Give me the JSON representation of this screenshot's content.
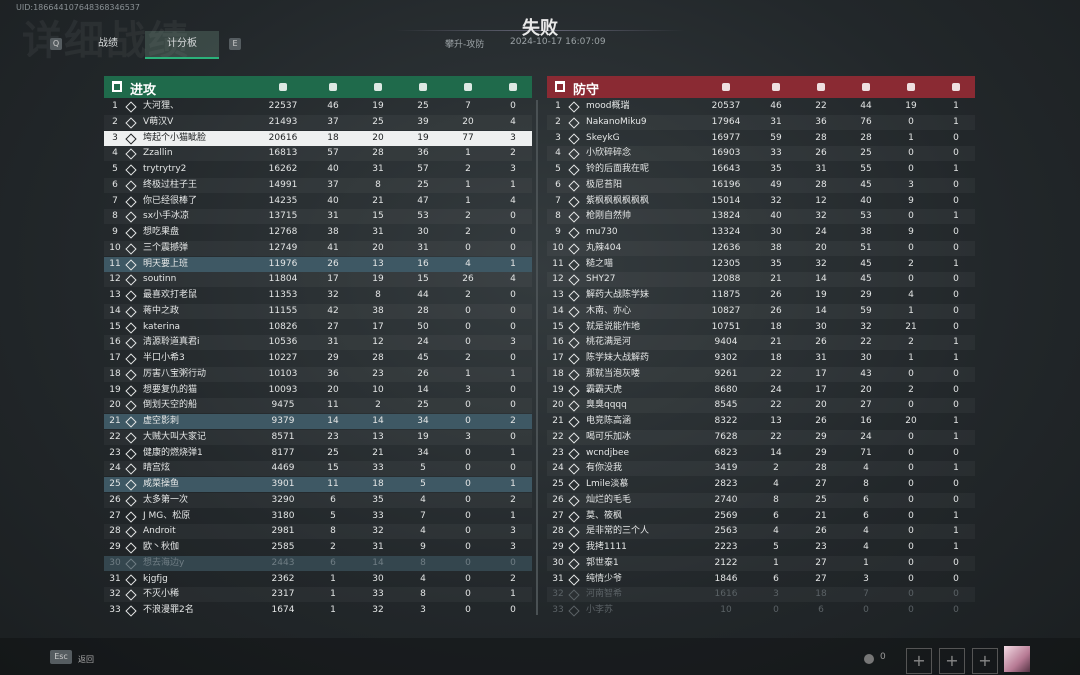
{
  "header": {
    "uid": "UID:186644107648368346537",
    "background_title": "详细战绩",
    "tab_keys": [
      "Q",
      "E"
    ],
    "tabs": [
      "战绩",
      "计分板"
    ],
    "result": "失败",
    "mode": "攀升-攻防",
    "time": "2024-10-17 16:07:09"
  },
  "teams": [
    {
      "name": "进攻",
      "rows": [
        [
          1,
          "大河狸、",
          22537,
          46,
          19,
          25,
          7,
          0
        ],
        [
          2,
          "V萌汉V",
          21493,
          37,
          25,
          39,
          20,
          4
        ],
        [
          3,
          "垮起个小猫眦脸",
          20616,
          18,
          20,
          19,
          77,
          3
        ],
        [
          4,
          "Zzallin",
          16813,
          57,
          28,
          36,
          1,
          2
        ],
        [
          5,
          "trytrytry2",
          16262,
          40,
          31,
          57,
          2,
          3
        ],
        [
          6,
          "终极过柱子王",
          14991,
          37,
          8,
          25,
          1,
          1
        ],
        [
          7,
          "你已经很棒了",
          14235,
          40,
          21,
          47,
          1,
          4
        ],
        [
          8,
          "sx小手冰凉",
          13715,
          31,
          15,
          53,
          2,
          0
        ],
        [
          9,
          "想吃果盘",
          12768,
          38,
          31,
          30,
          2,
          0
        ],
        [
          10,
          "三个震撼弹",
          12749,
          41,
          20,
          31,
          0,
          0
        ],
        [
          11,
          "明天要上班",
          11976,
          26,
          13,
          16,
          4,
          1
        ],
        [
          12,
          "soutinn",
          11804,
          17,
          19,
          15,
          26,
          4
        ],
        [
          13,
          "最喜欢打老鼠",
          11353,
          32,
          8,
          44,
          2,
          0
        ],
        [
          14,
          "蒋中之政",
          11155,
          42,
          38,
          28,
          0,
          0
        ],
        [
          15,
          "katerina",
          10826,
          27,
          17,
          50,
          0,
          0
        ],
        [
          16,
          "清源聆道真君i",
          10536,
          31,
          12,
          24,
          0,
          3
        ],
        [
          17,
          "半口小希3",
          10227,
          29,
          28,
          45,
          2,
          0
        ],
        [
          18,
          "厉害八宝粥行动",
          10103,
          36,
          23,
          26,
          1,
          1
        ],
        [
          19,
          "想要复仇的猫",
          10093,
          20,
          10,
          14,
          3,
          0
        ],
        [
          20,
          "倒划天空的船",
          9475,
          11,
          2,
          25,
          0,
          0
        ],
        [
          21,
          "虚空影刺",
          9379,
          14,
          14,
          34,
          0,
          2
        ],
        [
          22,
          "大贼大叫大家记",
          8571,
          23,
          13,
          19,
          3,
          0
        ],
        [
          23,
          "健康的燃烧弹1",
          8177,
          25,
          21,
          34,
          0,
          1
        ],
        [
          24,
          "晴宫炫",
          4469,
          15,
          33,
          5,
          0,
          0
        ],
        [
          25,
          "咸菜操鱼",
          3901,
          11,
          18,
          5,
          0,
          1
        ],
        [
          26,
          "太多第一次",
          3290,
          6,
          35,
          4,
          0,
          2
        ],
        [
          27,
          "J MG、松原",
          3180,
          5,
          33,
          7,
          0,
          1
        ],
        [
          28,
          "Androit",
          2981,
          8,
          32,
          4,
          0,
          3
        ],
        [
          29,
          "欧丶秋伽",
          2585,
          2,
          31,
          9,
          0,
          3
        ],
        [
          30,
          "想去海边y",
          2443,
          6,
          14,
          8,
          0,
          0
        ],
        [
          31,
          "kjgfjg",
          2362,
          1,
          30,
          4,
          0,
          2
        ],
        [
          32,
          "不灭小稀",
          2317,
          1,
          33,
          8,
          0,
          1
        ],
        [
          33,
          "不浪漫罪2名",
          1674,
          1,
          32,
          3,
          0,
          0
        ]
      ]
    },
    {
      "name": "防守",
      "rows": [
        [
          1,
          "mood概瑞",
          20537,
          46,
          22,
          44,
          19,
          1
        ],
        [
          2,
          "NakanoMiku9",
          17964,
          31,
          36,
          76,
          0,
          1
        ],
        [
          3,
          "SkeykG",
          16977,
          59,
          28,
          28,
          1,
          0
        ],
        [
          4,
          "小欣碎碎念",
          16903,
          33,
          26,
          25,
          0,
          0
        ],
        [
          5,
          "铃的后面我在呢",
          16643,
          35,
          31,
          55,
          0,
          1
        ],
        [
          6,
          "极尼苔阳",
          16196,
          49,
          28,
          45,
          3,
          0
        ],
        [
          7,
          "紫枫枫枫枫枫枫",
          15014,
          32,
          12,
          40,
          9,
          0
        ],
        [
          8,
          "枪刚自然帅",
          13824,
          40,
          32,
          53,
          0,
          1
        ],
        [
          9,
          "mu730",
          13324,
          30,
          24,
          38,
          9,
          0
        ],
        [
          10,
          "丸辣404",
          12636,
          38,
          20,
          51,
          0,
          0
        ],
        [
          11,
          "糙之喵",
          12305,
          35,
          32,
          45,
          2,
          1
        ],
        [
          12,
          "SHY27",
          12088,
          21,
          14,
          45,
          0,
          0
        ],
        [
          13,
          "解药大战陈学妹",
          11875,
          26,
          19,
          29,
          4,
          0
        ],
        [
          14,
          "木南、亦心",
          10827,
          26,
          14,
          59,
          1,
          0
        ],
        [
          15,
          "就是说能作地",
          10751,
          18,
          30,
          32,
          21,
          0
        ],
        [
          16,
          "桃花满是河",
          9404,
          21,
          26,
          22,
          2,
          1
        ],
        [
          17,
          "陈学妹大战解药",
          9302,
          18,
          31,
          30,
          1,
          1
        ],
        [
          18,
          "那就当泡灰喽",
          9261,
          22,
          17,
          43,
          0,
          0
        ],
        [
          19,
          "霸霸天虎",
          8680,
          24,
          17,
          20,
          2,
          0
        ],
        [
          20,
          "臭臭qqqq",
          8545,
          22,
          20,
          27,
          0,
          0
        ],
        [
          21,
          "电竞陈高涵",
          8322,
          13,
          26,
          16,
          20,
          1
        ],
        [
          22,
          "喝可乐加冰",
          7628,
          22,
          29,
          24,
          0,
          1
        ],
        [
          23,
          "wcndjbee",
          6823,
          14,
          29,
          71,
          0,
          0
        ],
        [
          24,
          "有你没我",
          3419,
          2,
          28,
          4,
          0,
          1
        ],
        [
          25,
          "Lmile淡慕",
          2823,
          4,
          27,
          8,
          0,
          0
        ],
        [
          26,
          "灿烂的毛毛",
          2740,
          8,
          25,
          6,
          0,
          0
        ],
        [
          27,
          "莫、筱枫",
          2569,
          6,
          21,
          6,
          0,
          1
        ],
        [
          28,
          "是非常的三个人",
          2563,
          4,
          26,
          4,
          0,
          1
        ],
        [
          29,
          "我拷1111",
          2223,
          5,
          23,
          4,
          0,
          1
        ],
        [
          30,
          "郭世泰1",
          2122,
          1,
          27,
          1,
          0,
          0
        ],
        [
          31,
          "纯情少爷",
          1846,
          6,
          27,
          3,
          0,
          0
        ],
        [
          32,
          "河南智希",
          1616,
          3,
          18,
          7,
          0,
          0
        ],
        [
          33,
          "小李苏",
          10,
          0,
          6,
          0,
          0,
          0
        ]
      ]
    }
  ],
  "footer": {
    "key": "Esc",
    "back": "返回",
    "party_count": 0
  }
}
